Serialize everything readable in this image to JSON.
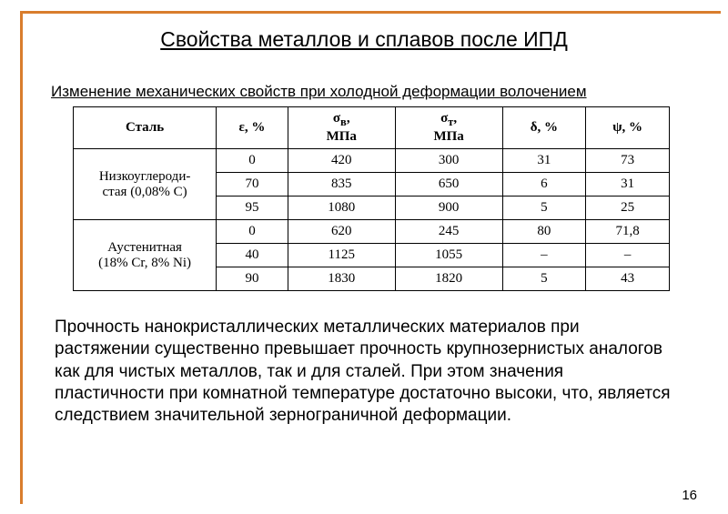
{
  "title": "Свойства металлов и сплавов после ИПД",
  "subtitle": "Изменение механических свойств при холодной деформации волочением",
  "table": {
    "columns": [
      "Сталь",
      "ε, %",
      "σв, МПа",
      "σт, МПа",
      "δ, %",
      "ψ, %"
    ],
    "groups": [
      {
        "steel": "Низкоуглероди-\nстая (0,08% С)",
        "rows": [
          [
            "0",
            "420",
            "300",
            "31",
            "73"
          ],
          [
            "70",
            "835",
            "650",
            "6",
            "31"
          ],
          [
            "95",
            "1080",
            "900",
            "5",
            "25"
          ]
        ]
      },
      {
        "steel": "Аустенитная\n(18% Cr, 8% Ni)",
        "rows": [
          [
            "0",
            "620",
            "245",
            "80",
            "71,8"
          ],
          [
            "40",
            "1125",
            "1055",
            "–",
            "–"
          ],
          [
            "90",
            "1830",
            "1820",
            "5",
            "43"
          ]
        ]
      }
    ],
    "col_widths_pct": [
      24,
      12,
      18,
      18,
      14,
      14
    ]
  },
  "body": "Прочность нанокристаллических металлических материалов при растяжении существенно превышает прочность крупнозернистых аналогов как для чистых металлов, так и для сталей. При этом значения пластичности при комнатной температуре достаточно высоки, что, является следствием значительной зернограничной деформации.",
  "page": "16",
  "colors": {
    "accent": "#d97d2d",
    "text": "#000000",
    "bg": "#ffffff"
  }
}
